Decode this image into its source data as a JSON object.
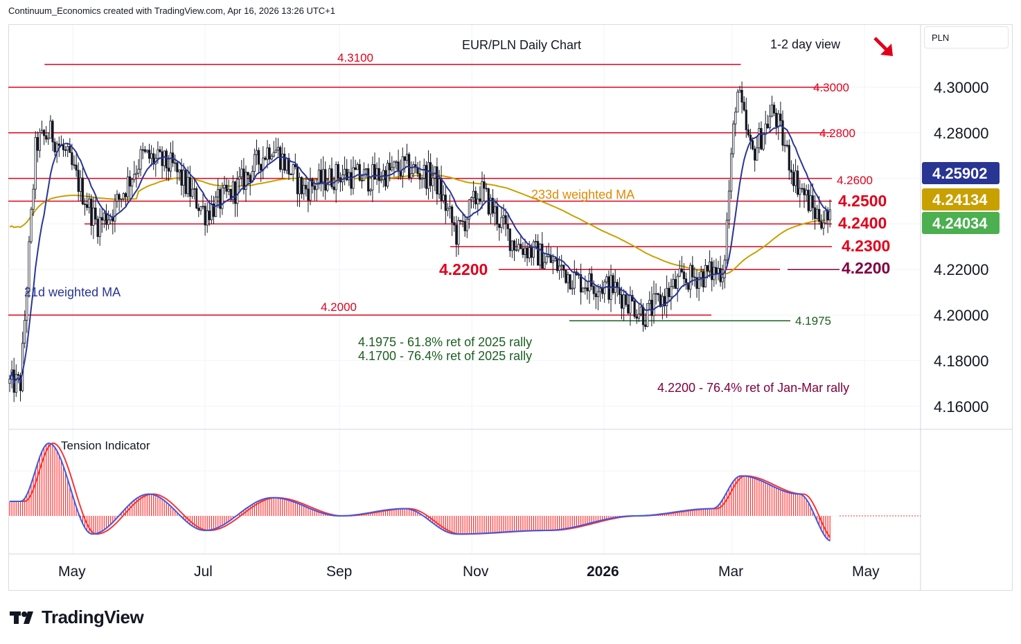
{
  "header": {
    "text": "Continuum_Economics created with TradingView.com, Apr 16, 2026 13:26 UTC+1"
  },
  "branding": {
    "logo_text": "TradingView"
  },
  "pair_label": "PLN",
  "colors": {
    "red_level": "#e0001b",
    "green_level": "#1b5e20",
    "purple_level": "#800040",
    "ma21": "#283593",
    "ma233": "#c8a000",
    "candle": "#131722",
    "tension_line": "#3c5ae6",
    "tension_signal": "#ff3030"
  },
  "annotations": {
    "title": "EUR/PLN Daily Chart",
    "view": "1-2 day view",
    "ma233_label": "233d weighted MA",
    "ma21_label": "21d weighted MA",
    "ret1": "4.1975 - 61.8% ret of 2025 rally",
    "ret2": "4.1700 - 76.4% ret of 2025 rally",
    "ret3": "4.2200 - 76.4% ret of Jan-Mar rally",
    "tension_label": "Tension Indicator",
    "arrow_icon": "down-right-arrow-icon"
  },
  "chart_data": [
    {
      "type": "candlestick",
      "title": "EUR/PLN Daily Chart",
      "x_axis": {
        "tick_labels": [
          "May",
          "Jul",
          "Sep",
          "Nov",
          "2026",
          "Mar",
          "May"
        ],
        "range": [
          "2025-04",
          "2026-05"
        ]
      },
      "y_axis": {
        "tick_labels": [
          "4.30000",
          "4.28000",
          "4.26000",
          "4.24000",
          "4.22000",
          "4.20000",
          "4.18000",
          "4.16000"
        ],
        "ylim": [
          4.145,
          4.325
        ]
      },
      "last_values": {
        "ma21": "4.25902",
        "ma233": "4.24134",
        "price": "4.24034"
      },
      "levels": [
        {
          "value": 4.31,
          "label": "4.3100",
          "color": "red",
          "span": "Apr-2025 to Mar-2026"
        },
        {
          "value": 4.3,
          "label": "4.3000",
          "color": "red"
        },
        {
          "value": 4.28,
          "label": "4.2800",
          "color": "red"
        },
        {
          "value": 4.26,
          "label": "4.2600",
          "color": "red"
        },
        {
          "value": 4.25,
          "label": "4.2500",
          "color": "red"
        },
        {
          "value": 4.24,
          "label": "4.2400",
          "color": "red"
        },
        {
          "value": 4.23,
          "label": "4.2300",
          "color": "red"
        },
        {
          "value": 4.22,
          "label": "4.2200",
          "color": "red"
        },
        {
          "value": 4.22,
          "label": "4.2200",
          "color": "purple"
        },
        {
          "value": 4.2,
          "label": "4.2000",
          "color": "red"
        },
        {
          "value": 4.1975,
          "label": "4.1975",
          "color": "green"
        }
      ],
      "series": [
        {
          "name": "EUR/PLN",
          "daily_close_approx": [
            {
              "date": "2025-04-07",
              "value": 4.17
            },
            {
              "date": "2025-04-14",
              "value": 4.275
            },
            {
              "date": "2025-04-21",
              "value": 4.28
            },
            {
              "date": "2025-04-28",
              "value": 4.27
            },
            {
              "date": "2025-05-12",
              "value": 4.24
            },
            {
              "date": "2025-05-19",
              "value": 4.245
            },
            {
              "date": "2025-06-02",
              "value": 4.27
            },
            {
              "date": "2025-06-16",
              "value": 4.265
            },
            {
              "date": "2025-07-01",
              "value": 4.245
            },
            {
              "date": "2025-07-15",
              "value": 4.255
            },
            {
              "date": "2025-08-01",
              "value": 4.275
            },
            {
              "date": "2025-08-15",
              "value": 4.255
            },
            {
              "date": "2025-09-01",
              "value": 4.262
            },
            {
              "date": "2025-09-15",
              "value": 4.26
            },
            {
              "date": "2025-10-01",
              "value": 4.265
            },
            {
              "date": "2025-10-15",
              "value": 4.26
            },
            {
              "date": "2025-10-25",
              "value": 4.235
            },
            {
              "date": "2025-11-05",
              "value": 4.255
            },
            {
              "date": "2025-11-20",
              "value": 4.232
            },
            {
              "date": "2025-12-05",
              "value": 4.225
            },
            {
              "date": "2025-12-20",
              "value": 4.215
            },
            {
              "date": "2026-01-05",
              "value": 4.212
            },
            {
              "date": "2026-01-20",
              "value": 4.2
            },
            {
              "date": "2026-02-05",
              "value": 4.215
            },
            {
              "date": "2026-02-25",
              "value": 4.22
            },
            {
              "date": "2026-03-03",
              "value": 4.3
            },
            {
              "date": "2026-03-10",
              "value": 4.27
            },
            {
              "date": "2026-03-20",
              "value": 4.29
            },
            {
              "date": "2026-03-30",
              "value": 4.26
            },
            {
              "date": "2026-04-08",
              "value": 4.245
            },
            {
              "date": "2026-04-16",
              "value": 4.24034
            }
          ]
        },
        {
          "name": "233d weighted MA",
          "last": 4.24134
        },
        {
          "name": "21d weighted MA",
          "last": 4.25902
        }
      ],
      "grid": true
    },
    {
      "type": "histogram",
      "title": "Tension Indicator",
      "note": "oscillator panel, approximate shape",
      "values_approx": [
        {
          "date": "2025-04-07",
          "value": 0.2
        },
        {
          "date": "2025-04-20",
          "value": 1.0
        },
        {
          "date": "2025-05-10",
          "value": -0.25
        },
        {
          "date": "2025-06-05",
          "value": 0.3
        },
        {
          "date": "2025-07-01",
          "value": -0.2
        },
        {
          "date": "2025-08-01",
          "value": 0.25
        },
        {
          "date": "2025-09-01",
          "value": 0.0
        },
        {
          "date": "2025-10-01",
          "value": 0.1
        },
        {
          "date": "2025-10-25",
          "value": -0.25
        },
        {
          "date": "2025-12-05",
          "value": -0.2
        },
        {
          "date": "2026-01-15",
          "value": 0.0
        },
        {
          "date": "2026-02-20",
          "value": 0.1
        },
        {
          "date": "2026-03-05",
          "value": 0.55
        },
        {
          "date": "2026-04-01",
          "value": 0.3
        },
        {
          "date": "2026-04-16",
          "value": -0.35
        }
      ]
    }
  ]
}
